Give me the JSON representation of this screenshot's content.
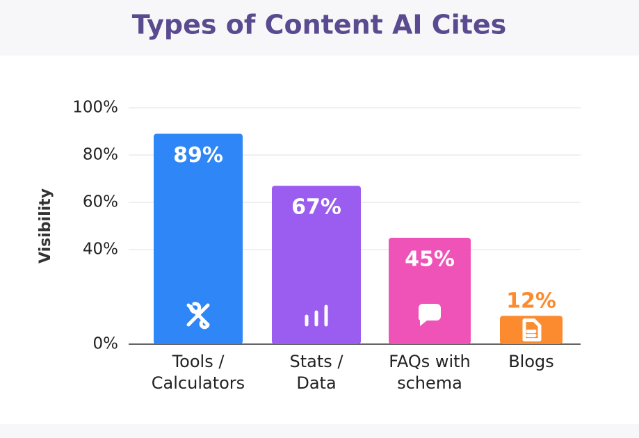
{
  "chart_data": {
    "type": "bar",
    "title": "Types of Content AI Cites",
    "y_label": "Visibility",
    "categories": [
      "Tools / Calculators",
      "Stats / Data",
      "FAQs with schema",
      "Blogs"
    ],
    "series": [
      {
        "name": "Visibility",
        "colors": [
          "#2f86f6",
          "#9b5cf0",
          "#f053b8",
          "#fb8b2e"
        ],
        "values": [
          89,
          67,
          45,
          12
        ],
        "value_labels": [
          "89%",
          "67%",
          "45%",
          "12%"
        ]
      }
    ],
    "ylim": [
      0,
      100
    ],
    "yticks": [
      {
        "value": 0,
        "label": "0%"
      },
      {
        "value": 40,
        "label": "40%"
      },
      {
        "value": 60,
        "label": "60%"
      },
      {
        "value": 80,
        "label": "80%"
      },
      {
        "value": 100,
        "label": "100%"
      }
    ],
    "grid": true
  }
}
